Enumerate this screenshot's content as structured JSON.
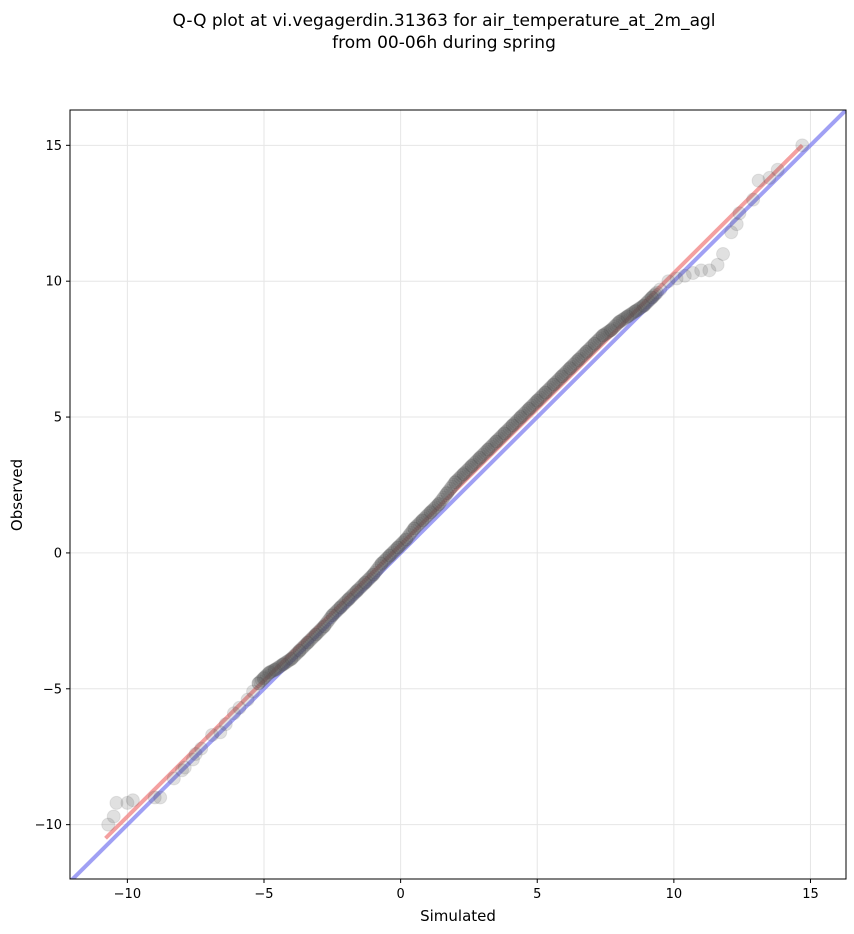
{
  "chart_data": {
    "type": "scatter",
    "title": "Q-Q plot at vi.vegagerdin.31363 for air_temperature_at_2m_agl",
    "subtitle": "from 00-06h during spring",
    "xlabel": "Simulated",
    "ylabel": "Observed",
    "xlim": [
      -12.1,
      16.3
    ],
    "ylim": [
      -12.0,
      16.3
    ],
    "xticks": [
      -10,
      -5,
      0,
      5,
      10,
      15
    ],
    "yticks": [
      -10,
      -5,
      0,
      5,
      10,
      15
    ],
    "grid": true,
    "series": [
      {
        "x": [
          -10.7,
          -10.5,
          -10.4,
          -10.0,
          -9.8,
          -9.0,
          -8.8,
          -8.3,
          -8.0,
          -7.9,
          -7.6,
          -7.5,
          -7.3,
          -6.9,
          -6.6,
          -6.4,
          -6.1,
          -5.9,
          -5.6,
          -5.4,
          -5.2,
          -5.0,
          -4.8,
          -4.6,
          -4.3,
          -4.0,
          -3.7,
          -3.4,
          -3.1,
          -2.8,
          -2.5,
          -2.2,
          -1.9,
          -1.6,
          -1.3,
          -1.0,
          -0.7,
          -0.4,
          -0.1,
          0.2,
          0.5,
          0.8,
          1.1,
          1.4,
          1.7,
          2.0,
          2.3,
          2.6,
          2.9,
          3.2,
          3.5,
          3.8,
          4.1,
          4.4,
          4.7,
          5.0,
          5.3,
          5.6,
          5.9,
          6.2,
          6.5,
          6.8,
          7.1,
          7.4,
          7.7,
          8.0,
          8.3,
          8.6,
          8.9,
          9.2,
          9.5,
          9.8,
          10.1,
          10.4,
          10.7,
          11.0,
          11.3,
          11.6,
          11.8,
          12.1,
          12.3,
          12.4,
          12.9,
          13.1,
          13.5,
          13.8,
          14.7
        ],
        "y": [
          -10.0,
          -9.7,
          -9.2,
          -9.2,
          -9.1,
          -9.0,
          -9.0,
          -8.3,
          -8.0,
          -7.9,
          -7.6,
          -7.4,
          -7.2,
          -6.7,
          -6.6,
          -6.3,
          -5.9,
          -5.7,
          -5.4,
          -5.1,
          -4.8,
          -4.6,
          -4.4,
          -4.3,
          -4.1,
          -3.9,
          -3.6,
          -3.3,
          -3.0,
          -2.7,
          -2.3,
          -2.0,
          -1.7,
          -1.4,
          -1.1,
          -0.8,
          -0.4,
          -0.1,
          0.2,
          0.5,
          0.9,
          1.2,
          1.5,
          1.8,
          2.2,
          2.6,
          2.9,
          3.2,
          3.5,
          3.8,
          4.1,
          4.4,
          4.7,
          5.0,
          5.3,
          5.6,
          5.9,
          6.2,
          6.5,
          6.8,
          7.1,
          7.4,
          7.7,
          8.0,
          8.2,
          8.5,
          8.7,
          8.9,
          9.1,
          9.4,
          9.7,
          10.0,
          10.1,
          10.2,
          10.3,
          10.4,
          10.4,
          10.6,
          11.0,
          11.8,
          12.1,
          12.5,
          13.0,
          13.7,
          13.8,
          14.1,
          15.0
        ]
      }
    ],
    "lines": [
      {
        "x": [
          -10.8,
          14.7
        ],
        "y": [
          -10.5,
          15.0
        ],
        "color": "#f08080"
      },
      {
        "x": [
          -12.1,
          16.3
        ],
        "y": [
          -12.1,
          16.3
        ],
        "color": "#8080f0"
      }
    ],
    "colors": {
      "points": "#555555",
      "fit_line": "#ff6666",
      "identity_line": "#6666ff"
    }
  }
}
